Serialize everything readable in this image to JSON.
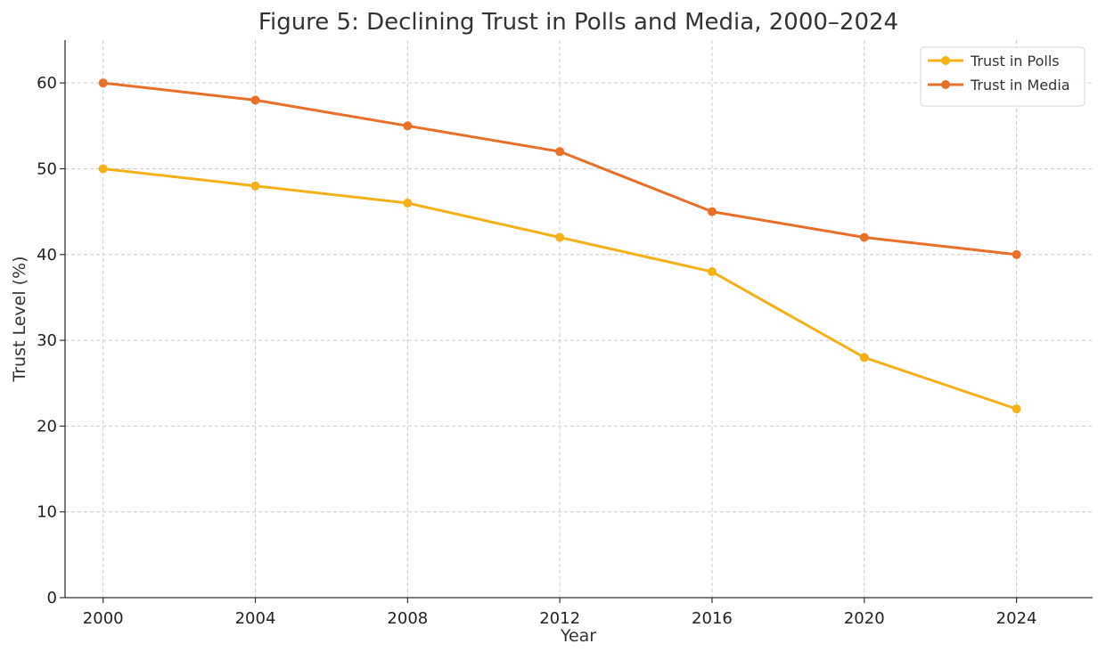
{
  "chart_data": {
    "type": "line",
    "title": "Figure 5: Declining Trust in Polls and Media, 2000–2024",
    "xlabel": "Year",
    "ylabel": "Trust Level (%)",
    "x": [
      2000,
      2004,
      2008,
      2012,
      2016,
      2020,
      2024
    ],
    "x_tick_labels": [
      "2000",
      "2004",
      "2008",
      "2012",
      "2016",
      "2020",
      "2024"
    ],
    "y_ticks": [
      0,
      10,
      20,
      30,
      40,
      50,
      60
    ],
    "y_tick_labels": [
      "0",
      "10",
      "20",
      "30",
      "40",
      "50",
      "60"
    ],
    "xlim": [
      1999,
      2026
    ],
    "ylim": [
      0,
      65
    ],
    "grid": true,
    "legend_position": "top-right",
    "series": [
      {
        "name": "Trust in Polls",
        "color": "#f4b11a",
        "values": [
          50,
          48,
          46,
          42,
          38,
          28,
          22
        ]
      },
      {
        "name": "Trust in Media",
        "color": "#e8702a",
        "values": [
          60,
          58,
          55,
          52,
          45,
          42,
          40
        ]
      }
    ]
  }
}
